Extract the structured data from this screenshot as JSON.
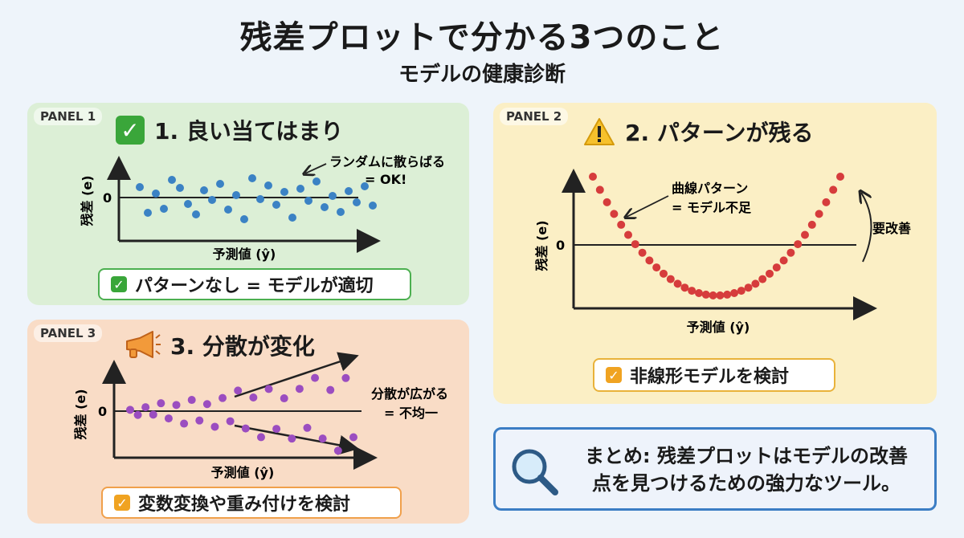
{
  "title": "残差プロットで分かる3つのこと",
  "subtitle": "モデルの健康診断",
  "panel1": {
    "tag": "PANEL 1",
    "heading": "1. 良い当てはまり",
    "annotation_line1": "ランダムに散らばる",
    "annotation_line2": "= OK!",
    "ylabel": "残差 (e)",
    "xlabel": "予測値 (ŷ)",
    "zero": "0",
    "conclusion": "パターンなし = モデルが適切",
    "color": "#3b82c4"
  },
  "panel2": {
    "tag": "PANEL 2",
    "heading": "2. パターンが残る",
    "annotation_line1": "曲線パターン",
    "annotation_line2": "= モデル不足",
    "side_note": "要改善",
    "ylabel": "残差 (e)",
    "xlabel": "予測値 (ŷ)",
    "zero": "0",
    "conclusion": "非線形モデルを検討",
    "color": "#d63c3c"
  },
  "panel3": {
    "tag": "PANEL 3",
    "heading": "3. 分散が変化",
    "annotation_line1": "分散が広がる",
    "annotation_line2": "= 不均一",
    "ylabel": "残差 (e)",
    "xlabel": "予測値 (ŷ)",
    "zero": "0",
    "conclusion": "変数変換や重み付けを検討",
    "color": "#9b4dc0"
  },
  "summary": {
    "line1": "まとめ: 残差プロットはモデルの改善",
    "line2": "点を見つけるための強力なツール。"
  },
  "icons": {
    "panel1": "check-icon",
    "panel2": "warning-icon",
    "panel3": "megaphone-icon",
    "summary": "magnifier-icon"
  }
}
